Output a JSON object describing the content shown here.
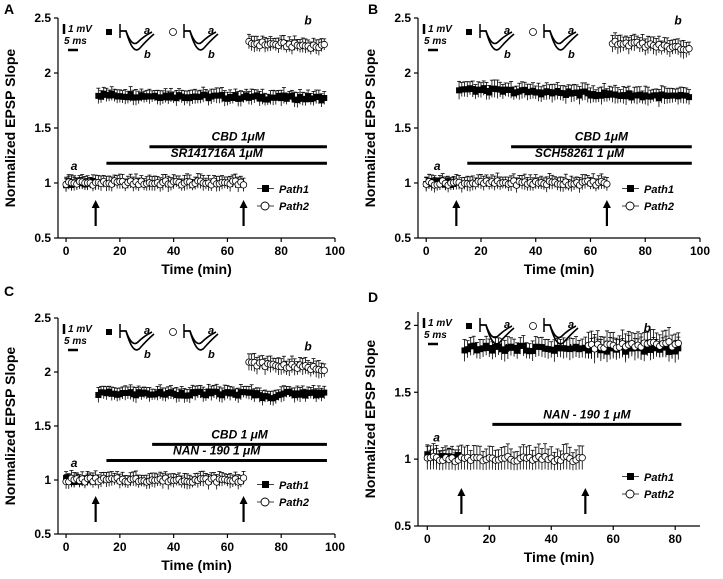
{
  "figure": {
    "description_text": ""
  },
  "chart_data": [
    {
      "panel_letter": "A",
      "type": "scatter",
      "xlabel": "Time (min)",
      "ylabel": "Normalized EPSP Slope",
      "xlim": [
        -3,
        100
      ],
      "ylim": [
        0.5,
        2.5
      ],
      "xticks": [
        0,
        20,
        40,
        60,
        80,
        100
      ],
      "yticks": [
        0.5,
        1,
        1.5,
        2,
        2.5
      ],
      "ytick_labels": [
        "0.5",
        "1",
        "1.5",
        "2",
        "2.5"
      ],
      "series": [
        {
          "name": "Path1",
          "marker": "filled-square",
          "segments": [
            {
              "x_start": 0,
              "x_end": 10,
              "step": 1,
              "value": 1.0,
              "err": 0.05
            },
            {
              "x_start": 12,
              "x_end": 96,
              "step": 1,
              "value": 1.8,
              "end_value": 1.77,
              "err": 0.06
            }
          ]
        },
        {
          "name": "Path2",
          "marker": "open-circle",
          "segments": [
            {
              "x_start": 0,
              "x_end": 66,
              "step": 1,
              "value": 1.0,
              "err": 0.06
            },
            {
              "x_start": 68,
              "x_end": 96,
              "step": 1,
              "value": 2.27,
              "end_value": 2.24,
              "err": 0.06
            }
          ]
        }
      ],
      "bars": [
        {
          "label": "CBD 1μM",
          "x_start": 31,
          "x_end": 97,
          "y": 1.33
        },
        {
          "label": "SR141716A 1μM",
          "x_start": 15,
          "x_end": 97,
          "y": 1.18
        }
      ],
      "arrows": [
        {
          "x": 11
        },
        {
          "x": 66
        }
      ],
      "annotations": [
        {
          "text": "a",
          "x": 3,
          "y": 1.12
        },
        {
          "text": "b",
          "x": 90,
          "y": 2.44
        }
      ],
      "scale_bar": {
        "vertical_label": "1 mV",
        "horizontal_label": "5 ms"
      },
      "trace_labels": {
        "a": "a",
        "b": "b"
      },
      "legend": {
        "position": "lower-right",
        "entries": [
          "Path1",
          "Path2"
        ]
      }
    },
    {
      "panel_letter": "B",
      "type": "scatter",
      "xlabel": "Time (min)",
      "ylabel": "Normalized EPSP Slope",
      "xlim": [
        -3,
        100
      ],
      "ylim": [
        0.5,
        2.5
      ],
      "xticks": [
        0,
        20,
        40,
        60,
        80,
        100
      ],
      "yticks": [
        0.5,
        1,
        1.5,
        2,
        2.5
      ],
      "ytick_labels": [
        "0.5",
        "1",
        "1.5",
        "2",
        "2.5"
      ],
      "series": [
        {
          "name": "Path1",
          "marker": "filled-square",
          "segments": [
            {
              "x_start": 0,
              "x_end": 10,
              "step": 1,
              "value": 1.0,
              "err": 0.05
            },
            {
              "x_start": 12,
              "x_end": 96,
              "step": 1,
              "value": 1.85,
              "end_value": 1.78,
              "err": 0.07
            }
          ]
        },
        {
          "name": "Path2",
          "marker": "open-circle",
          "segments": [
            {
              "x_start": 0,
              "x_end": 66,
              "step": 1,
              "value": 1.0,
              "err": 0.06
            },
            {
              "x_start": 68,
              "x_end": 96,
              "step": 1,
              "value": 2.28,
              "end_value": 2.22,
              "err": 0.07
            }
          ]
        }
      ],
      "bars": [
        {
          "label": "CBD 1μM",
          "x_start": 31,
          "x_end": 97,
          "y": 1.33
        },
        {
          "label": "SCH58261 1 μM",
          "x_start": 15,
          "x_end": 97,
          "y": 1.18
        }
      ],
      "arrows": [
        {
          "x": 11
        },
        {
          "x": 66
        }
      ],
      "annotations": [
        {
          "text": "a",
          "x": 4,
          "y": 1.12
        },
        {
          "text": "b",
          "x": 92,
          "y": 2.44
        }
      ],
      "scale_bar": {
        "vertical_label": "1 mV",
        "horizontal_label": "5 ms"
      },
      "trace_labels": {
        "a": "a",
        "b": "b"
      },
      "legend": {
        "position": "lower-right",
        "entries": [
          "Path1",
          "Path2"
        ]
      }
    },
    {
      "panel_letter": "C",
      "type": "scatter",
      "xlabel": "Time (min)",
      "ylabel": "Normalized EPSP Slope",
      "xlim": [
        -3,
        100
      ],
      "ylim": [
        0.5,
        2.5
      ],
      "xticks": [
        0,
        20,
        40,
        60,
        80,
        100
      ],
      "yticks": [
        0.5,
        1,
        1.5,
        2,
        2.5
      ],
      "ytick_labels": [
        "0.5",
        "1",
        "1.5",
        "2",
        "2.5"
      ],
      "series": [
        {
          "name": "Path1",
          "marker": "filled-square",
          "segments": [
            {
              "x_start": 0,
              "x_end": 10,
              "step": 1,
              "value": 1.0,
              "err": 0.05
            },
            {
              "x_start": 12,
              "x_end": 96,
              "step": 1,
              "value": 1.8,
              "end_value": 1.8,
              "dip": 1.76,
              "err": 0.06
            }
          ]
        },
        {
          "name": "Path2",
          "marker": "open-circle",
          "segments": [
            {
              "x_start": 0,
              "x_end": 66,
              "step": 1,
              "value": 1.0,
              "err": 0.06
            },
            {
              "x_start": 68,
              "x_end": 96,
              "step": 1,
              "value": 2.08,
              "end_value": 2.03,
              "err": 0.07
            }
          ]
        }
      ],
      "bars": [
        {
          "label": "CBD 1 μM",
          "x_start": 32,
          "x_end": 97,
          "y": 1.33
        },
        {
          "label": "NAN - 190 1 μM",
          "x_start": 15,
          "x_end": 97,
          "y": 1.18
        }
      ],
      "arrows": [
        {
          "x": 11
        },
        {
          "x": 66
        }
      ],
      "annotations": [
        {
          "text": "a",
          "x": 3,
          "y": 1.12
        },
        {
          "text": "b",
          "x": 90,
          "y": 2.2
        }
      ],
      "scale_bar": {
        "vertical_label": "1 mV",
        "horizontal_label": "5 ms"
      },
      "trace_labels": {
        "a": "a",
        "b": "b"
      },
      "legend": {
        "position": "lower-right",
        "entries": [
          "Path1",
          "Path2"
        ]
      }
    },
    {
      "panel_letter": "D",
      "type": "scatter",
      "xlabel": "Time (min)",
      "ylabel": "Normalized EPSP Slope",
      "xlim": [
        -3,
        88
      ],
      "ylim": [
        0.5,
        2.1
      ],
      "xticks": [
        0,
        20,
        40,
        60,
        80
      ],
      "yticks": [
        0.5,
        1,
        1.5,
        2
      ],
      "ytick_labels": [
        "0.5",
        "1",
        "1.5",
        "2"
      ],
      "series": [
        {
          "name": "Path1",
          "marker": "filled-square",
          "segments": [
            {
              "x_start": 0,
              "x_end": 10,
              "step": 1,
              "value": 1.02,
              "err": 0.06
            },
            {
              "x_start": 12,
              "x_end": 81,
              "step": 1,
              "value": 1.83,
              "end_value": 1.82,
              "err": 0.07
            }
          ]
        },
        {
          "name": "Path2",
          "marker": "open-circle",
          "segments": [
            {
              "x_start": 0,
              "x_end": 50,
              "step": 1,
              "value": 1.0,
              "err": 0.08
            },
            {
              "x_start": 52,
              "x_end": 81,
              "step": 1,
              "value": 1.84,
              "end_value": 1.86,
              "err": 0.09
            }
          ]
        }
      ],
      "bars": [
        {
          "label": "NAN - 190 1 μM",
          "x_start": 21,
          "x_end": 82,
          "y": 1.26
        }
      ],
      "arrows": [
        {
          "x": 11
        },
        {
          "x": 51
        }
      ],
      "annotations": [
        {
          "text": "a",
          "x": 3,
          "y": 1.13
        },
        {
          "text": "b",
          "x": 71,
          "y": 1.95
        }
      ],
      "scale_bar": {
        "vertical_label": "1 mV",
        "horizontal_label": "5 ms"
      },
      "trace_labels": {
        "a": "a",
        "b": "b"
      },
      "legend": {
        "position": "lower-right",
        "entries": [
          "Path1",
          "Path2"
        ]
      }
    }
  ]
}
